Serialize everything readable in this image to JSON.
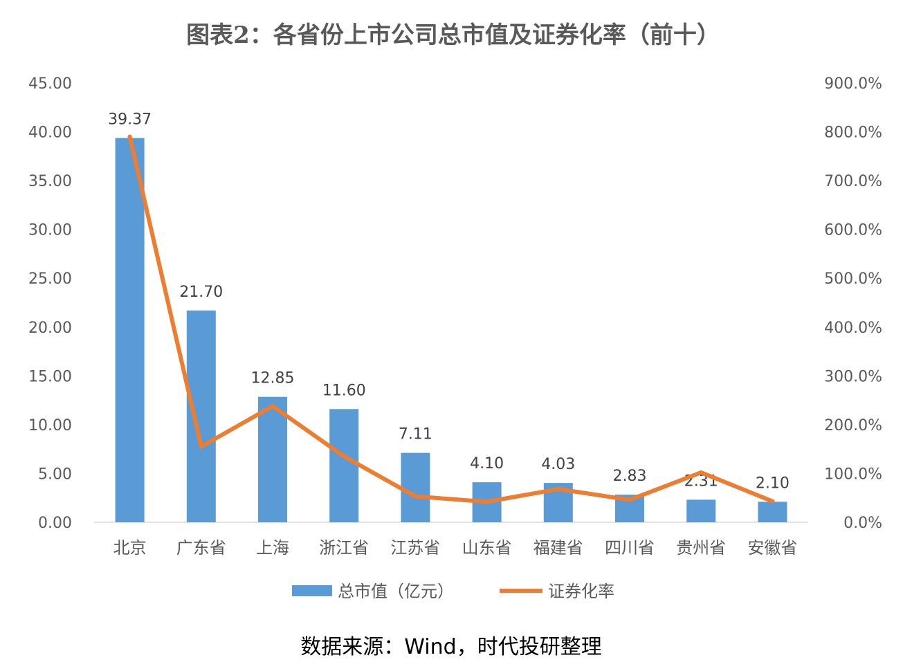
{
  "title": "图表2：各省份上市公司总市值及证券化率（前十）",
  "source": "数据来源：Wind，时代投研整理",
  "colors": {
    "bar": "#5B9BD5",
    "line": "#ED7D31",
    "axis": "#D9D9D9",
    "text": "#595959"
  },
  "legend": {
    "bar_label": "总市值（亿元）",
    "line_label": "证券化率"
  },
  "chart_data": {
    "type": "bar",
    "categories": [
      "北京",
      "广东省",
      "上海",
      "浙江省",
      "江苏省",
      "山东省",
      "福建省",
      "四川省",
      "贵州省",
      "安徽省"
    ],
    "series": [
      {
        "name": "总市值（亿元）",
        "type": "bar",
        "axis": "left",
        "values": [
          39.37,
          21.7,
          12.85,
          11.6,
          7.11,
          4.1,
          4.03,
          2.83,
          2.31,
          2.1
        ],
        "labels": [
          "39.37",
          "21.70",
          "12.85",
          "11.60",
          "7.11",
          "4.10",
          "4.03",
          "2.83",
          "2.31",
          "2.10"
        ]
      },
      {
        "name": "证券化率",
        "type": "line",
        "axis": "right",
        "values": [
          790,
          155,
          238,
          135,
          53,
          42,
          68,
          46,
          102,
          43
        ]
      }
    ],
    "left_axis": {
      "min": 0,
      "max": 45,
      "step": 5,
      "ticks": [
        "0.00",
        "5.00",
        "10.00",
        "15.00",
        "20.00",
        "25.00",
        "30.00",
        "35.00",
        "40.00",
        "45.00"
      ]
    },
    "right_axis": {
      "min": 0,
      "max": 900,
      "step": 100,
      "unit": "%",
      "ticks": [
        "0.0%",
        "100.0%",
        "200.0%",
        "300.0%",
        "400.0%",
        "500.0%",
        "600.0%",
        "700.0%",
        "800.0%",
        "900.0%"
      ]
    },
    "grid": false,
    "legend_position": "bottom"
  }
}
